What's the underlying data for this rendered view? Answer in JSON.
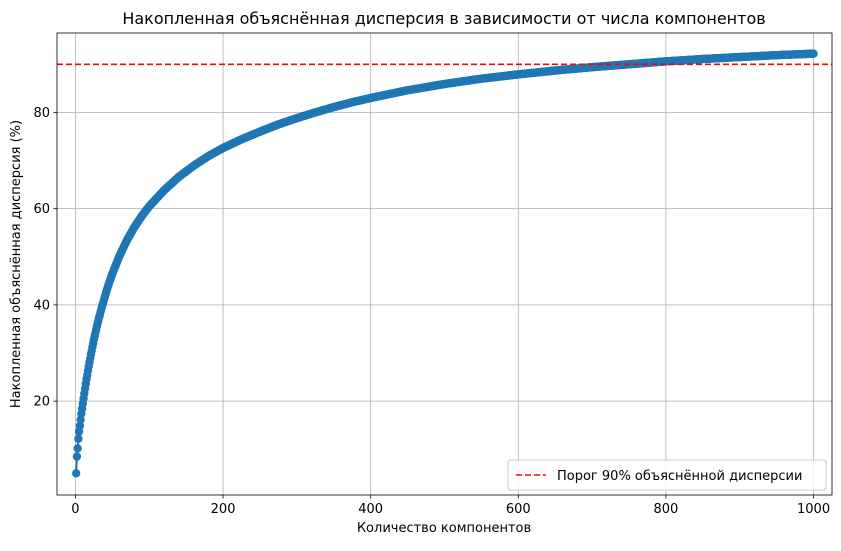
{
  "chart_data": {
    "type": "scatter",
    "title": "Накопленная объяснённая дисперсия в зависимости от числа компонентов",
    "xlabel": "Количество компонентов",
    "ylabel": "Накопленная объяснённая дисперсия (%)",
    "xlim": [
      -25,
      1025
    ],
    "ylim": [
      0.5,
      96.5
    ],
    "x_ticks": [
      0,
      200,
      400,
      600,
      800,
      1000
    ],
    "y_ticks": [
      20,
      40,
      60,
      80
    ],
    "grid": true,
    "legend_position": "bottom-right",
    "series": [
      {
        "style": "line with circle markers",
        "color": "#1f77b4",
        "points": [
          {
            "x": 1,
            "y": 5.0
          },
          {
            "x": 2,
            "y": 8.5
          },
          {
            "x": 3,
            "y": 10.2
          },
          {
            "x": 4,
            "y": 12.2
          },
          {
            "x": 5,
            "y": 13.7
          },
          {
            "x": 6,
            "y": 14.9
          },
          {
            "x": 8,
            "y": 17.4
          },
          {
            "x": 10,
            "y": 19.5
          },
          {
            "x": 12,
            "y": 21.6
          },
          {
            "x": 15,
            "y": 24.6
          },
          {
            "x": 18,
            "y": 27.2
          },
          {
            "x": 20,
            "y": 28.9
          },
          {
            "x": 25,
            "y": 32.8
          },
          {
            "x": 30,
            "y": 36.2
          },
          {
            "x": 35,
            "y": 39.1
          },
          {
            "x": 40,
            "y": 41.8
          },
          {
            "x": 45,
            "y": 44.3
          },
          {
            "x": 50,
            "y": 46.5
          },
          {
            "x": 60,
            "y": 50.3
          },
          {
            "x": 70,
            "y": 53.5
          },
          {
            "x": 80,
            "y": 56.2
          },
          {
            "x": 90,
            "y": 58.5
          },
          {
            "x": 100,
            "y": 60.5
          },
          {
            "x": 120,
            "y": 63.8
          },
          {
            "x": 140,
            "y": 66.6
          },
          {
            "x": 160,
            "y": 68.9
          },
          {
            "x": 180,
            "y": 70.9
          },
          {
            "x": 200,
            "y": 72.6
          },
          {
            "x": 225,
            "y": 74.4
          },
          {
            "x": 250,
            "y": 76.0
          },
          {
            "x": 275,
            "y": 77.5
          },
          {
            "x": 300,
            "y": 78.8
          },
          {
            "x": 325,
            "y": 80.0
          },
          {
            "x": 350,
            "y": 81.1
          },
          {
            "x": 375,
            "y": 82.1
          },
          {
            "x": 400,
            "y": 83.0
          },
          {
            "x": 450,
            "y": 84.6
          },
          {
            "x": 500,
            "y": 85.9
          },
          {
            "x": 550,
            "y": 87.0
          },
          {
            "x": 600,
            "y": 87.9
          },
          {
            "x": 650,
            "y": 88.7
          },
          {
            "x": 700,
            "y": 89.4
          },
          {
            "x": 750,
            "y": 90.0
          },
          {
            "x": 800,
            "y": 90.6
          },
          {
            "x": 850,
            "y": 91.1
          },
          {
            "x": 900,
            "y": 91.5
          },
          {
            "x": 950,
            "y": 91.9
          },
          {
            "x": 1000,
            "y": 92.2
          }
        ]
      }
    ],
    "threshold": {
      "y": 90,
      "label": "Порог 90% объяснённой дисперсии",
      "color": "#ff0000",
      "style": "dashed"
    }
  }
}
